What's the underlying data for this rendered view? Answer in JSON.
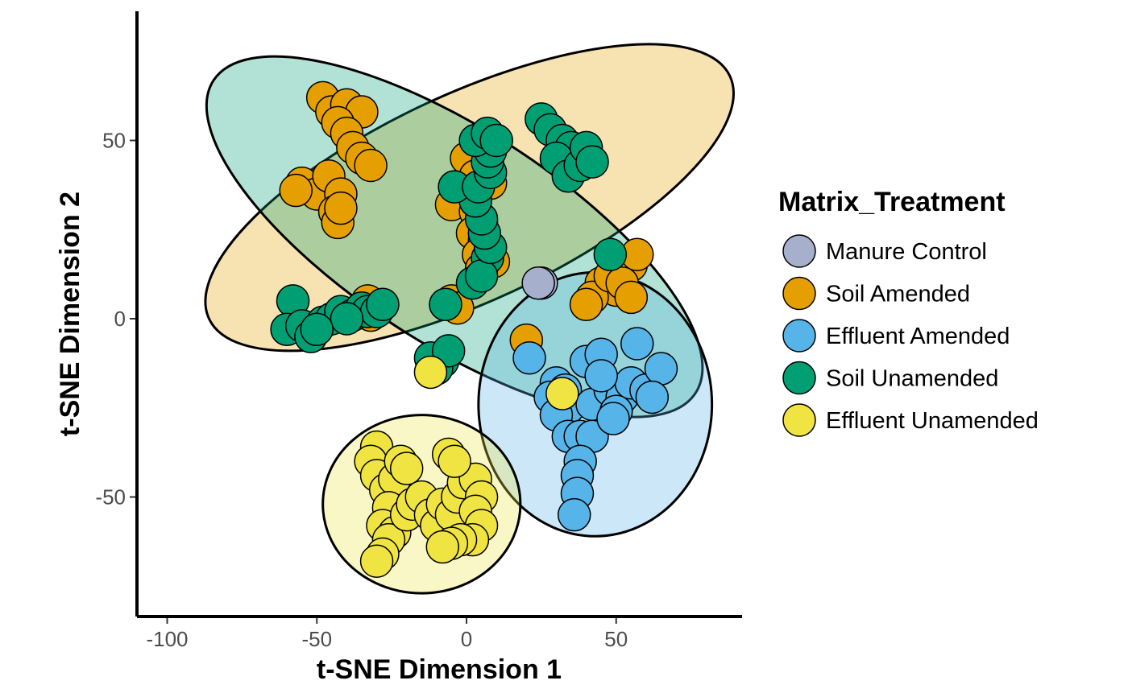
{
  "chart_data": {
    "type": "scatter",
    "xlabel": "t-SNE Dimension 1",
    "ylabel": "t-SNE Dimension 2",
    "xlim": [
      -110,
      92
    ],
    "ylim": [
      -83,
      86
    ],
    "x_ticks": [
      -100,
      -50,
      0,
      50
    ],
    "x_tick_labels": [
      "-100",
      "-50",
      "0",
      "50"
    ],
    "y_ticks": [
      50,
      0,
      -50
    ],
    "y_tick_labels": [
      "50",
      "0",
      "-50"
    ],
    "grid": false,
    "legend": {
      "title": "Matrix_Treatment",
      "position": "right"
    },
    "series": [
      {
        "name": "Manure Control",
        "color": "#a6b0cc",
        "points": [
          [
            25,
            10
          ],
          [
            24,
            10
          ]
        ]
      },
      {
        "name": "Soil Amended",
        "color": "#e69f00",
        "points": [
          [
            -48,
            62
          ],
          [
            -45,
            58
          ],
          [
            -40,
            60
          ],
          [
            -35,
            58
          ],
          [
            -43,
            55
          ],
          [
            -40,
            52
          ],
          [
            -38,
            48
          ],
          [
            -35,
            45
          ],
          [
            -32,
            43
          ],
          [
            -55,
            38
          ],
          [
            -50,
            35
          ],
          [
            -46,
            40
          ],
          [
            -42,
            35
          ],
          [
            -44,
            30
          ],
          [
            -43,
            27
          ],
          [
            -42,
            31
          ],
          [
            -57,
            36
          ],
          [
            -31,
            3
          ],
          [
            -32,
            1
          ],
          [
            -33,
            5
          ],
          [
            0,
            45
          ],
          [
            3,
            40
          ],
          [
            8,
            38
          ],
          [
            -2,
            35
          ],
          [
            -5,
            32
          ],
          [
            3,
            30
          ],
          [
            5,
            27
          ],
          [
            2,
            24
          ],
          [
            6,
            22
          ],
          [
            4,
            18
          ],
          [
            9,
            16
          ],
          [
            5,
            14
          ],
          [
            -5,
            5
          ],
          [
            -3,
            3
          ],
          [
            45,
            10
          ],
          [
            50,
            8
          ],
          [
            42,
            6
          ],
          [
            48,
            12
          ],
          [
            55,
            15
          ],
          [
            57,
            18
          ],
          [
            52,
            10
          ],
          [
            40,
            4
          ],
          [
            55,
            6
          ],
          [
            20,
            -6
          ]
        ]
      },
      {
        "name": "Effluent Amended",
        "color": "#56b4e9",
        "points": [
          [
            21,
            -11
          ],
          [
            30,
            -18
          ],
          [
            28,
            -22
          ],
          [
            34,
            -25
          ],
          [
            30,
            -27
          ],
          [
            33,
            -20
          ],
          [
            40,
            -12
          ],
          [
            45,
            -10
          ],
          [
            42,
            -24
          ],
          [
            48,
            -20
          ],
          [
            52,
            -22
          ],
          [
            50,
            -26
          ],
          [
            55,
            -18
          ],
          [
            60,
            -20
          ],
          [
            57,
            -7
          ],
          [
            65,
            -14
          ],
          [
            62,
            -22
          ],
          [
            34,
            -33
          ],
          [
            38,
            -33
          ],
          [
            42,
            -33
          ],
          [
            38,
            -40
          ],
          [
            37,
            -44
          ],
          [
            37,
            -49
          ],
          [
            36,
            -55
          ],
          [
            45,
            -16
          ],
          [
            49,
            -28
          ]
        ]
      },
      {
        "name": "Soil Unamended",
        "color": "#009e73",
        "points": [
          [
            -58,
            5
          ],
          [
            -60,
            -3
          ],
          [
            -55,
            -2
          ],
          [
            -52,
            -5
          ],
          [
            -48,
            -1
          ],
          [
            -45,
            0
          ],
          [
            -42,
            2
          ],
          [
            -38,
            1
          ],
          [
            -35,
            3
          ],
          [
            -33,
            2
          ],
          [
            -30,
            2
          ],
          [
            -28,
            4
          ],
          [
            -40,
            0
          ],
          [
            -50,
            -3
          ],
          [
            -8,
            -12
          ],
          [
            -10,
            -14
          ],
          [
            -12,
            -11
          ],
          [
            -6,
            -9
          ],
          [
            -7,
            4
          ],
          [
            2,
            10
          ],
          [
            7,
            17
          ],
          [
            5,
            12
          ],
          [
            8,
            20
          ],
          [
            6,
            24
          ],
          [
            5,
            28
          ],
          [
            3,
            33
          ],
          [
            -4,
            37
          ],
          [
            4,
            37
          ],
          [
            8,
            41
          ],
          [
            7,
            44
          ],
          [
            8,
            47
          ],
          [
            3,
            50
          ],
          [
            7,
            52
          ],
          [
            10,
            50
          ],
          [
            25,
            56
          ],
          [
            28,
            53
          ],
          [
            32,
            50
          ],
          [
            35,
            48
          ],
          [
            30,
            45
          ],
          [
            34,
            40
          ],
          [
            38,
            43
          ],
          [
            40,
            48
          ],
          [
            42,
            44
          ],
          [
            48,
            18
          ]
        ]
      },
      {
        "name": "Effluent Unamended",
        "color": "#f0e442",
        "points": [
          [
            -30,
            -36
          ],
          [
            -32,
            -40
          ],
          [
            -30,
            -44
          ],
          [
            -27,
            -48
          ],
          [
            -24,
            -45
          ],
          [
            -22,
            -40
          ],
          [
            -20,
            -42
          ],
          [
            -26,
            -53
          ],
          [
            -28,
            -58
          ],
          [
            -24,
            -60
          ],
          [
            -26,
            -62
          ],
          [
            -28,
            -66
          ],
          [
            -30,
            -68
          ],
          [
            -20,
            -55
          ],
          [
            -18,
            -52
          ],
          [
            -15,
            -50
          ],
          [
            -12,
            -55
          ],
          [
            -10,
            -58
          ],
          [
            -8,
            -52
          ],
          [
            -5,
            -55
          ],
          [
            -3,
            -50
          ],
          [
            -1,
            -46
          ],
          [
            3,
            -45
          ],
          [
            5,
            -50
          ],
          [
            3,
            -54
          ],
          [
            5,
            -58
          ],
          [
            2,
            -62
          ],
          [
            -2,
            -62
          ],
          [
            -5,
            -63
          ],
          [
            -8,
            -64
          ],
          [
            -6,
            -38
          ],
          [
            -4,
            -40
          ],
          [
            -12,
            -15
          ],
          [
            32,
            -21
          ]
        ]
      }
    ],
    "ellipses": [
      {
        "series": "Soil Amended",
        "cx": 1,
        "cy": 34,
        "rx": 96,
        "ry": 29,
        "angle_deg": -25
      },
      {
        "series": "Soil Unamended",
        "cx": -4,
        "cy": 23,
        "rx": 96,
        "ry": 30,
        "angle_deg": 33
      },
      {
        "series": "Effluent Amended",
        "cx": 43,
        "cy": -24,
        "rx": 39,
        "ry": 37,
        "angle_deg": 0
      },
      {
        "series": "Effluent Unamended",
        "cx": -15,
        "cy": -52,
        "rx": 33,
        "ry": 25,
        "angle_deg": 0
      }
    ]
  }
}
